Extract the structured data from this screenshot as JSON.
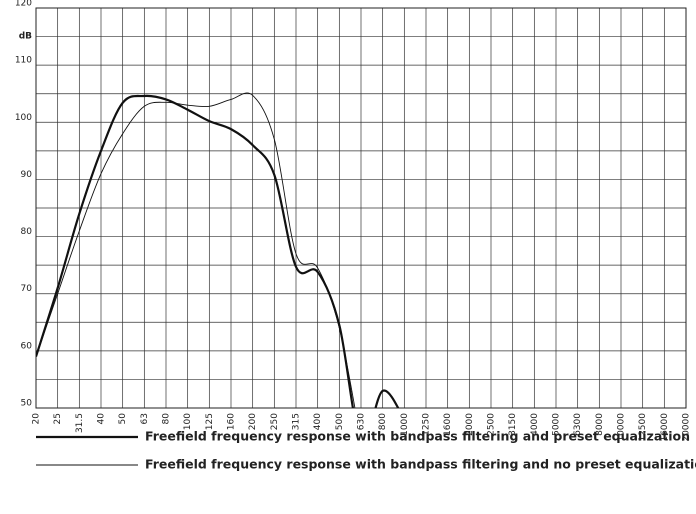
{
  "chart_data": {
    "type": "line",
    "y_unit": "dB",
    "categories": [
      "20",
      "25",
      "31.5",
      "40",
      "50",
      "63",
      "80",
      "100",
      "125",
      "160",
      "200",
      "250",
      "315",
      "400",
      "500",
      "630",
      "800",
      "1000",
      "1250",
      "1600",
      "2000",
      "2500",
      "3150",
      "4000",
      "5000",
      "6300",
      "8000",
      "10000",
      "12500",
      "16000",
      "20000"
    ],
    "series": [
      {
        "name": "Freefield frequency response with bandpass filtering and preset equalization",
        "color": "#111111",
        "width": 2.2,
        "values": [
          59,
          71,
          84,
          95,
          103.4,
          104.6,
          104,
          102.2,
          100.2,
          98.8,
          96,
          90.8,
          74.7,
          73.8,
          64.5,
          44,
          53,
          48,
          null,
          null,
          null,
          null,
          null,
          null,
          null,
          null,
          null,
          null,
          null,
          null,
          null
        ]
      },
      {
        "name": "Freefield frequency response with bandpass filtering and no preset equalization",
        "color": "#111111",
        "width": 0.9,
        "values": [
          59,
          70,
          81,
          91,
          98,
          102.8,
          103.5,
          103,
          102.8,
          104,
          104.7,
          97,
          77,
          74.5,
          64,
          44,
          null,
          null,
          null,
          null,
          null,
          null,
          null,
          null,
          null,
          null,
          null,
          null,
          null,
          null,
          null
        ]
      }
    ],
    "ylim": [
      50,
      120
    ],
    "yticks": [
      50,
      60,
      70,
      80,
      90,
      100,
      110,
      120
    ],
    "y_minor_ticks": [
      55,
      65,
      75,
      85,
      95,
      105,
      115
    ],
    "grid": true
  }
}
